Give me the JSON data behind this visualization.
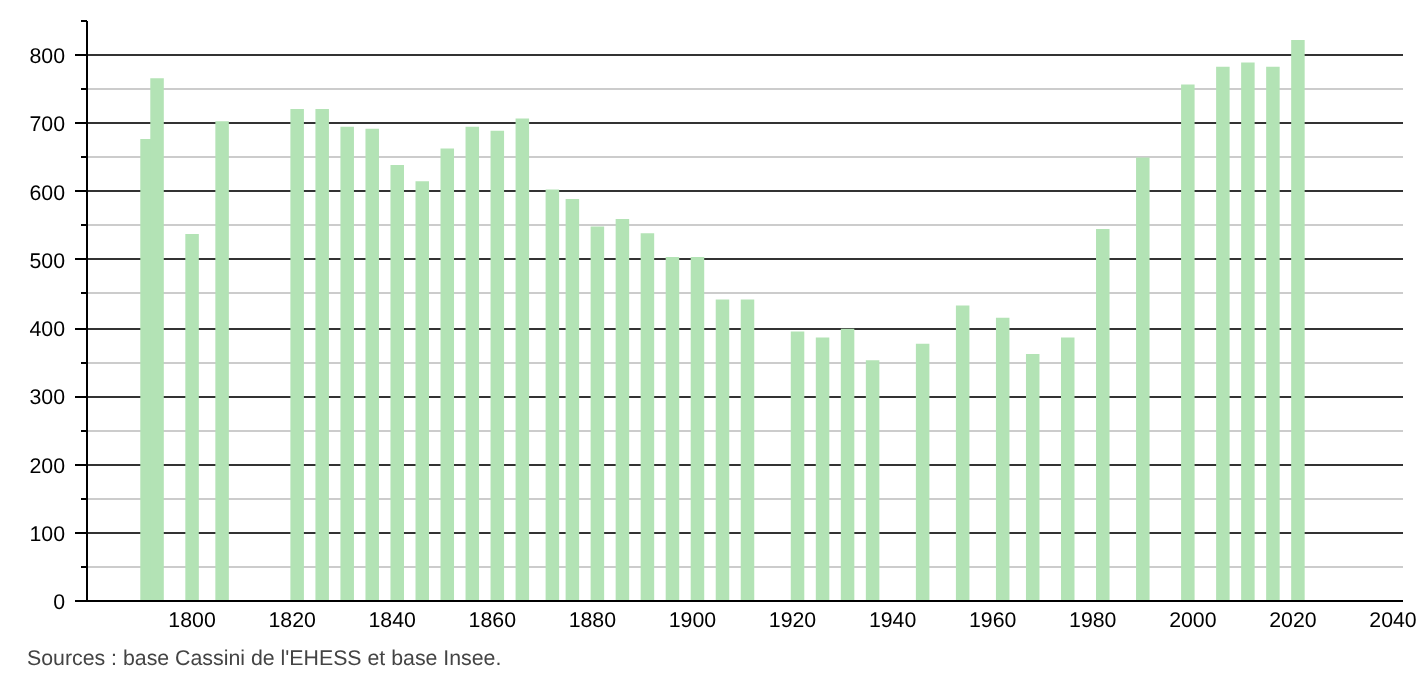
{
  "chart_data": {
    "type": "bar",
    "x": [
      1791,
      1793,
      1800,
      1806,
      1821,
      1826,
      1831,
      1836,
      1841,
      1846,
      1851,
      1856,
      1861,
      1866,
      1872,
      1876,
      1881,
      1886,
      1891,
      1896,
      1901,
      1906,
      1911,
      1921,
      1926,
      1931,
      1936,
      1946,
      1954,
      1962,
      1968,
      1975,
      1982,
      1990,
      1999,
      2006,
      2011,
      2016,
      2021
    ],
    "values": [
      677,
      766,
      538,
      703,
      721,
      721,
      695,
      692,
      639,
      615,
      663,
      695,
      689,
      707,
      603,
      589,
      549,
      560,
      539,
      504,
      504,
      442,
      442,
      395,
      386,
      399,
      353,
      377,
      433,
      415,
      362,
      386,
      545,
      650,
      757,
      783,
      789,
      783,
      822
    ],
    "color": "#b3e3b5",
    "xlim": [
      1779,
      2042
    ],
    "xticks": [
      1800,
      1820,
      1840,
      1860,
      1880,
      1900,
      1920,
      1940,
      1960,
      1980,
      2000,
      2020,
      2040
    ],
    "ylim": [
      0,
      850
    ],
    "yticks": [
      0,
      100,
      200,
      300,
      400,
      500,
      600,
      700,
      800
    ],
    "grid": "y",
    "annotations": [
      "Sources : base Cassini de l'EHESS et base Insee."
    ]
  }
}
